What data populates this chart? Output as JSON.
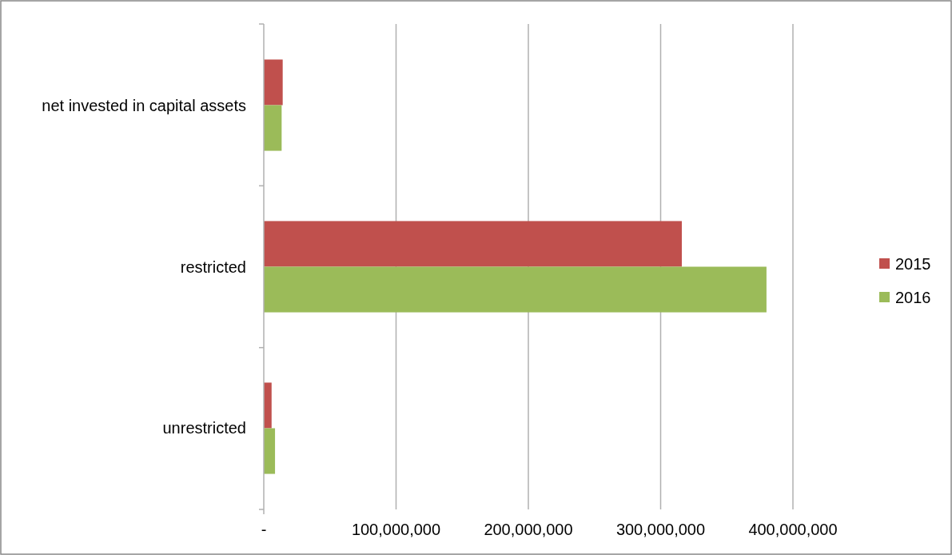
{
  "chart_data": {
    "type": "bar",
    "orientation": "horizontal",
    "categories": [
      "net invested in capital assets",
      "restricted",
      "unrestricted"
    ],
    "series": [
      {
        "name": "2015",
        "color": "#c0504d",
        "values": [
          14300000,
          316000000,
          5900000
        ]
      },
      {
        "name": "2016",
        "color": "#9bbb59",
        "values": [
          13500000,
          380000000,
          8500000
        ]
      }
    ],
    "xlim": [
      0,
      400000000
    ],
    "xticks": [
      {
        "value": 0,
        "label": "-"
      },
      {
        "value": 100000000,
        "label": "100,000,000"
      },
      {
        "value": 200000000,
        "label": "200,000,000"
      },
      {
        "value": 300000000,
        "label": "300,000,000"
      },
      {
        "value": 400000000,
        "label": "400,000,000"
      }
    ],
    "grid": "x",
    "legend": "right"
  }
}
